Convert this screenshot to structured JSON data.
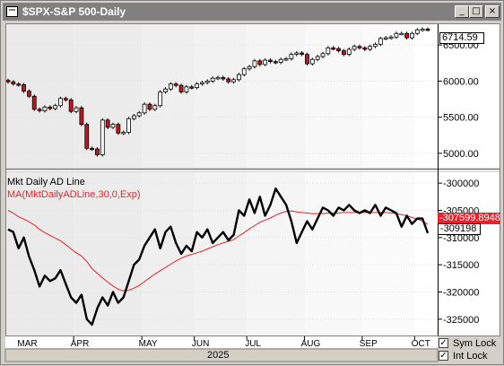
{
  "window": {
    "title": "$SPX-S&P 500-Daily",
    "buttons": [
      "_",
      "□",
      "×"
    ]
  },
  "price_pane": {
    "last_value_label": "6714.59"
  },
  "indicator_pane": {
    "title": "Mkt Daily AD Line",
    "ma_title": "MA(MktDailyADLine,30,0,Exp)",
    "ma_value_label": "-307599.8948",
    "ad_value_label": "-309198"
  },
  "controls": {
    "sym_lock": "Sym Lock",
    "int_lock": "Int Lock",
    "sym_lock_checked": true,
    "int_lock_checked": true
  },
  "colors": {
    "ma_line": "#e8222a",
    "down_candle": "#c8141e",
    "ad_line": "#000000"
  },
  "chart_data": [
    {
      "type": "candlestick",
      "title": "$SPX-S&P 500-Daily",
      "ylim": [
        4800,
        6800
      ],
      "y_ticks": [
        "5000.00",
        "5500.00",
        "6000.00",
        "6500.00"
      ],
      "x_ticks": [
        "MAR",
        "APR",
        "MAY",
        "JUN",
        "JUL",
        "AUG",
        "SEP",
        "OCT"
      ],
      "x_group_label": "2025",
      "x": [
        "Feb-24",
        "Feb-26",
        "Feb-28",
        "Mar-04",
        "Mar-06",
        "Mar-10",
        "Mar-12",
        "Mar-14",
        "Mar-18",
        "Mar-20",
        "Mar-24",
        "Mar-26",
        "Mar-28",
        "Apr-01",
        "Apr-03",
        "Apr-04",
        "Apr-07",
        "Apr-08",
        "Apr-09",
        "Apr-11",
        "Apr-15",
        "Apr-17",
        "Apr-22",
        "Apr-24",
        "Apr-28",
        "Apr-30",
        "May-02",
        "May-06",
        "May-08",
        "May-12",
        "May-14",
        "May-16",
        "May-20",
        "May-22",
        "May-27",
        "May-29",
        "Jun-02",
        "Jun-04",
        "Jun-06",
        "Jun-10",
        "Jun-12",
        "Jun-16",
        "Jun-18",
        "Jun-23",
        "Jun-25",
        "Jun-27",
        "Jul-01",
        "Jul-03",
        "Jul-08",
        "Jul-10",
        "Jul-14",
        "Jul-16",
        "Jul-18",
        "Jul-22",
        "Jul-24",
        "Jul-28",
        "Jul-30",
        "Aug-01",
        "Aug-05",
        "Aug-07",
        "Aug-11",
        "Aug-13",
        "Aug-15",
        "Aug-19",
        "Aug-21",
        "Aug-25",
        "Aug-27",
        "Aug-29",
        "Sep-03",
        "Sep-05",
        "Sep-09",
        "Sep-11",
        "Sep-15",
        "Sep-17",
        "Sep-19",
        "Sep-23",
        "Sep-25",
        "Sep-29",
        "Oct-01",
        "Oct-03",
        "Oct-06"
      ],
      "close": [
        5990,
        5960,
        5950,
        5860,
        5790,
        5610,
        5590,
        5640,
        5620,
        5660,
        5760,
        5740,
        5580,
        5630,
        5400,
        5070,
        5060,
        4980,
        5460,
        5360,
        5400,
        5280,
        5290,
        5480,
        5520,
        5560,
        5680,
        5610,
        5660,
        5850,
        5890,
        5960,
        5940,
        5850,
        5920,
        5910,
        5960,
        5980,
        6000,
        6040,
        6050,
        6030,
        5990,
        6020,
        6090,
        6170,
        6200,
        6280,
        6230,
        6290,
        6270,
        6260,
        6300,
        6310,
        6370,
        6390,
        6370,
        6240,
        6300,
        6340,
        6380,
        6460,
        6450,
        6420,
        6370,
        6440,
        6480,
        6460,
        6440,
        6480,
        6510,
        6590,
        6600,
        6610,
        6660,
        6660,
        6600,
        6660,
        6710,
        6720,
        6714.59
      ]
    },
    {
      "type": "line",
      "title": "Mkt Daily AD Line",
      "ylim": [
        -328000,
        -298000
      ],
      "y_ticks": [
        "-300000",
        "-305000",
        "-310000",
        "-315000",
        "-320000",
        "-325000"
      ],
      "x": [
        "Feb-24",
        "Feb-26",
        "Feb-28",
        "Mar-04",
        "Mar-06",
        "Mar-10",
        "Mar-12",
        "Mar-14",
        "Mar-18",
        "Mar-20",
        "Mar-24",
        "Mar-26",
        "Mar-28",
        "Apr-01",
        "Apr-03",
        "Apr-04",
        "Apr-07",
        "Apr-08",
        "Apr-09",
        "Apr-11",
        "Apr-15",
        "Apr-17",
        "Apr-22",
        "Apr-24",
        "Apr-28",
        "Apr-30",
        "May-02",
        "May-06",
        "May-08",
        "May-12",
        "May-14",
        "May-16",
        "May-20",
        "May-22",
        "May-27",
        "May-29",
        "Jun-02",
        "Jun-04",
        "Jun-06",
        "Jun-10",
        "Jun-12",
        "Jun-16",
        "Jun-18",
        "Jun-23",
        "Jun-25",
        "Jun-27",
        "Jul-01",
        "Jul-03",
        "Jul-08",
        "Jul-10",
        "Jul-14",
        "Jul-16",
        "Jul-18",
        "Jul-22",
        "Jul-24",
        "Jul-28",
        "Jul-30",
        "Aug-01",
        "Aug-05",
        "Aug-07",
        "Aug-11",
        "Aug-13",
        "Aug-15",
        "Aug-19",
        "Aug-21",
        "Aug-25",
        "Aug-27",
        "Aug-29",
        "Sep-03",
        "Sep-05",
        "Sep-09",
        "Sep-11",
        "Sep-15",
        "Sep-17",
        "Sep-19",
        "Sep-23",
        "Sep-25",
        "Sep-29",
        "Oct-01",
        "Oct-03",
        "Oct-06"
      ],
      "series": [
        {
          "name": "Mkt Daily AD Line",
          "values": [
            -308500,
            -309000,
            -312000,
            -310000,
            -313500,
            -316000,
            -319000,
            -317000,
            -318000,
            -317500,
            -316000,
            -318500,
            -321000,
            -322000,
            -320500,
            -325000,
            -326000,
            -323000,
            -321000,
            -322500,
            -320000,
            -322000,
            -321000,
            -318000,
            -315000,
            -314000,
            -311500,
            -310000,
            -308500,
            -312000,
            -309000,
            -308000,
            -311000,
            -313000,
            -311500,
            -312500,
            -309000,
            -310000,
            -308500,
            -311000,
            -310000,
            -309000,
            -310500,
            -309500,
            -305000,
            -306000,
            -303000,
            -305500,
            -302500,
            -306000,
            -304000,
            -301000,
            -302500,
            -304000,
            -307000,
            -311000,
            -309000,
            -307000,
            -308500,
            -306500,
            -304500,
            -305000,
            -306000,
            -304500,
            -305000,
            -304000,
            -305000,
            -305500,
            -305000,
            -305500,
            -304000,
            -306000,
            -304500,
            -305000,
            -305500,
            -308000,
            -306000,
            -307500,
            -306500,
            -306500,
            -309198
          ]
        },
        {
          "name": "MA(MktDailyADLine,30,0,Exp)",
          "values": [
            -305000,
            -305500,
            -306200,
            -306600,
            -307100,
            -307700,
            -308500,
            -309100,
            -309600,
            -310100,
            -310600,
            -311300,
            -312100,
            -312800,
            -313400,
            -314400,
            -315700,
            -316600,
            -317400,
            -318200,
            -318900,
            -319500,
            -319800,
            -319700,
            -319300,
            -318800,
            -318100,
            -317400,
            -316700,
            -316100,
            -315500,
            -314900,
            -314300,
            -313800,
            -313400,
            -313100,
            -312800,
            -312500,
            -312100,
            -311700,
            -311300,
            -311000,
            -310700,
            -310400,
            -309700,
            -309100,
            -308400,
            -307800,
            -307200,
            -306800,
            -306400,
            -305900,
            -305500,
            -305200,
            -305100,
            -305300,
            -305400,
            -305500,
            -305600,
            -305600,
            -305600,
            -305500,
            -305500,
            -305500,
            -305400,
            -305400,
            -305400,
            -305400,
            -305400,
            -305400,
            -305400,
            -305400,
            -305400,
            -305500,
            -305600,
            -305800,
            -306000,
            -306300,
            -306600,
            -307000,
            -307599.8948
          ]
        }
      ]
    }
  ]
}
